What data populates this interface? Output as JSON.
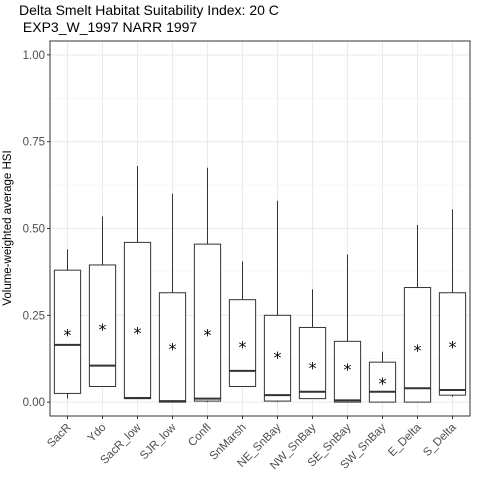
{
  "chart_data": {
    "type": "box",
    "title": "Delta Smelt Habitat Suitability Index: 20 C",
    "subtitle": " EXP3_W_1997 NARR 1997",
    "xlabel": "",
    "ylabel": "Volume-weighted average HSI",
    "ylim": [
      -0.04,
      1.04
    ],
    "yticks": [
      "0.00",
      "0.25",
      "0.50",
      "0.75",
      "1.00"
    ],
    "grid": true,
    "mean_marker": "*",
    "categories": [
      "SacR",
      "Ydo",
      "SacR_low",
      "SJR_low",
      "Confl",
      "SnMarsh",
      "NE_SnBay",
      "NW_SnBay",
      "SE_SnBay",
      "SW_SnBay",
      "E_Delta",
      "S_Delta"
    ],
    "boxes": [
      {
        "category": "SacR",
        "min": 0.01,
        "q1": 0.025,
        "median": 0.165,
        "q3": 0.38,
        "max": 0.44,
        "mean": 0.195
      },
      {
        "category": "Ydo",
        "min": 0.045,
        "q1": 0.045,
        "median": 0.105,
        "q3": 0.395,
        "max": 0.535,
        "mean": 0.21
      },
      {
        "category": "SacR_low",
        "min": 0.01,
        "q1": 0.01,
        "median": 0.012,
        "q3": 0.46,
        "max": 0.68,
        "mean": 0.2
      },
      {
        "category": "SJR_low",
        "min": 0.0,
        "q1": 0.0,
        "median": 0.003,
        "q3": 0.315,
        "max": 0.6,
        "mean": 0.155
      },
      {
        "category": "Confl",
        "min": 0.0,
        "q1": 0.003,
        "median": 0.01,
        "q3": 0.455,
        "max": 0.675,
        "mean": 0.195
      },
      {
        "category": "SnMarsh",
        "min": 0.045,
        "q1": 0.045,
        "median": 0.09,
        "q3": 0.295,
        "max": 0.405,
        "mean": 0.16
      },
      {
        "category": "NE_SnBay",
        "min": 0.0,
        "q1": 0.003,
        "median": 0.02,
        "q3": 0.25,
        "max": 0.58,
        "mean": 0.13
      },
      {
        "category": "NW_SnBay",
        "min": 0.01,
        "q1": 0.01,
        "median": 0.03,
        "q3": 0.215,
        "max": 0.325,
        "mean": 0.1
      },
      {
        "category": "SE_SnBay",
        "min": 0.0,
        "q1": 0.0,
        "median": 0.005,
        "q3": 0.175,
        "max": 0.425,
        "mean": 0.095
      },
      {
        "category": "SW_SnBay",
        "min": 0.0,
        "q1": 0.0,
        "median": 0.03,
        "q3": 0.115,
        "max": 0.145,
        "mean": 0.055
      },
      {
        "category": "E_Delta",
        "min": 0.0,
        "q1": 0.0,
        "median": 0.04,
        "q3": 0.33,
        "max": 0.51,
        "mean": 0.15
      },
      {
        "category": "S_Delta",
        "min": 0.015,
        "q1": 0.02,
        "median": 0.035,
        "q3": 0.315,
        "max": 0.555,
        "mean": 0.16
      }
    ]
  }
}
